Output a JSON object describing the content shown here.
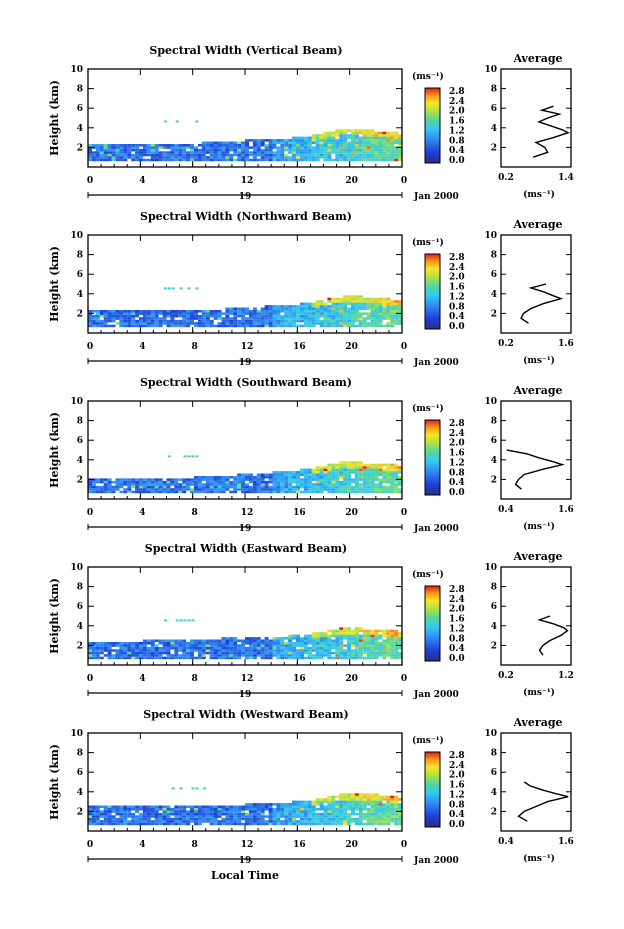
{
  "figure": {
    "xlabel": "Local Time",
    "date_label": "Jan 2000",
    "day_label": "19",
    "ylabel": "Height (km)",
    "colorbar_unit": "(ms⁻¹)",
    "average_title": "Average",
    "average_xlabel": "(ms⁻¹)"
  },
  "chart_data": [
    {
      "type": "heatmap",
      "title": "Spectral Width (Vertical Beam)",
      "xlabel": "Local Time",
      "ylabel": "Height (km)",
      "xlim": [
        0,
        24
      ],
      "ylim": [
        0,
        10
      ],
      "x_ticks": [
        "0",
        "4",
        "8",
        "12",
        "16",
        "20",
        "0"
      ],
      "y_ticks": [
        "2",
        "4",
        "6",
        "8",
        "10"
      ],
      "colorbar": {
        "label": "(ms⁻¹)",
        "range": [
          0.0,
          2.8
        ],
        "ticks": [
          "0.0",
          "0.4",
          "0.8",
          "1.2",
          "1.6",
          "2.0",
          "2.4",
          "2.8"
        ]
      },
      "coverage_top_km": [
        [
          0,
          2.3
        ],
        [
          8,
          2.3
        ],
        [
          12,
          2.6
        ],
        [
          16,
          2.9
        ],
        [
          18,
          3.4
        ],
        [
          19.5,
          3.8
        ],
        [
          22,
          3.6
        ],
        [
          24,
          3.3
        ]
      ],
      "isolated_echo_km": [
        {
          "t": [
            5.8,
            8.3
          ],
          "h": 4.6
        }
      ],
      "average": {
        "title": "Average",
        "xlabel": "(ms⁻¹)",
        "xlim": [
          0.2,
          1.4
        ],
        "x_ticks": [
          "0.2",
          "1.4"
        ],
        "height": [
          1.0,
          1.5,
          2.0,
          2.5,
          3.0,
          3.5,
          3.8,
          4.2,
          4.6,
          5.0,
          5.4,
          5.8,
          6.2
        ],
        "values": [
          0.75,
          1.0,
          0.95,
          0.8,
          1.1,
          1.35,
          1.25,
          1.05,
          0.85,
          1.0,
          1.2,
          0.9,
          1.1
        ]
      }
    },
    {
      "type": "heatmap",
      "title": "Spectral Width (Northward Beam)",
      "xlabel": "Local Time",
      "ylabel": "Height (km)",
      "xlim": [
        0,
        24
      ],
      "ylim": [
        0,
        10
      ],
      "x_ticks": [
        "0",
        "4",
        "8",
        "12",
        "16",
        "20",
        "0"
      ],
      "y_ticks": [
        "2",
        "4",
        "6",
        "8",
        "10"
      ],
      "colorbar": {
        "label": "(ms⁻¹)",
        "range": [
          0.0,
          2.8
        ],
        "ticks": [
          "0.0",
          "0.4",
          "0.8",
          "1.2",
          "1.6",
          "2.0",
          "2.4",
          "2.8"
        ]
      },
      "coverage_top_km": [
        [
          0,
          2.2
        ],
        [
          8,
          2.2
        ],
        [
          12,
          2.5
        ],
        [
          16,
          2.8
        ],
        [
          18,
          3.3
        ],
        [
          19.5,
          3.7
        ],
        [
          22,
          3.5
        ],
        [
          24,
          3.2
        ]
      ],
      "isolated_echo_km": [
        {
          "t": [
            5.8,
            8.5
          ],
          "h": 4.5
        }
      ],
      "average": {
        "title": "Average",
        "xlabel": "(ms⁻¹)",
        "xlim": [
          0.2,
          1.6
        ],
        "x_ticks": [
          "0.2",
          "1.6"
        ],
        "height": [
          1.0,
          1.5,
          2.0,
          2.5,
          3.0,
          3.5,
          3.8,
          4.2,
          4.6,
          5.0
        ],
        "values": [
          0.75,
          0.6,
          0.65,
          0.8,
          1.05,
          1.4,
          1.25,
          1.05,
          0.8,
          1.1
        ]
      }
    },
    {
      "type": "heatmap",
      "title": "Spectral Width (Southward Beam)",
      "xlabel": "Local Time",
      "ylabel": "Height (km)",
      "xlim": [
        0,
        24
      ],
      "ylim": [
        0,
        10
      ],
      "x_ticks": [
        "0",
        "4",
        "8",
        "12",
        "16",
        "20",
        "0"
      ],
      "y_ticks": [
        "2",
        "4",
        "6",
        "8",
        "10"
      ],
      "colorbar": {
        "label": "(ms⁻¹)",
        "range": [
          0.0,
          2.8
        ],
        "ticks": [
          "0.0",
          "0.4",
          "0.8",
          "1.2",
          "1.6",
          "2.0",
          "2.4",
          "2.8"
        ]
      },
      "coverage_top_km": [
        [
          0,
          2.0
        ],
        [
          8,
          2.1
        ],
        [
          12,
          2.4
        ],
        [
          16,
          2.8
        ],
        [
          18,
          3.3
        ],
        [
          19.5,
          3.7
        ],
        [
          22,
          3.5
        ],
        [
          24,
          3.3
        ]
      ],
      "isolated_echo_km": [
        {
          "t": [
            5.8,
            8.5
          ],
          "h": 4.3
        }
      ],
      "average": {
        "title": "Average",
        "xlabel": "(ms⁻¹)",
        "xlim": [
          0.4,
          1.6
        ],
        "x_ticks": [
          "0.4",
          "1.6"
        ],
        "height": [
          1.0,
          1.5,
          2.0,
          2.5,
          3.0,
          3.5,
          3.8,
          4.2,
          4.6,
          5.0
        ],
        "values": [
          0.75,
          0.65,
          0.7,
          0.8,
          1.1,
          1.45,
          1.3,
          1.05,
          0.85,
          0.5
        ]
      }
    },
    {
      "type": "heatmap",
      "title": "Spectral Width (Eastward Beam)",
      "xlabel": "Local Time",
      "ylabel": "Height (km)",
      "xlim": [
        0,
        24
      ],
      "ylim": [
        0,
        10
      ],
      "x_ticks": [
        "0",
        "4",
        "8",
        "12",
        "16",
        "20",
        "0"
      ],
      "y_ticks": [
        "2",
        "4",
        "6",
        "8",
        "10"
      ],
      "colorbar": {
        "label": "(ms⁻¹)",
        "range": [
          0.0,
          2.8
        ],
        "ticks": [
          "0.0",
          "0.4",
          "0.8",
          "1.2",
          "1.6",
          "2.0",
          "2.4",
          "2.8"
        ]
      },
      "coverage_top_km": [
        [
          0,
          2.2
        ],
        [
          8,
          2.5
        ],
        [
          12,
          2.7
        ],
        [
          16,
          2.9
        ],
        [
          18,
          3.3
        ],
        [
          19.5,
          3.7
        ],
        [
          22,
          3.5
        ],
        [
          24,
          3.3
        ]
      ],
      "isolated_echo_km": [
        {
          "t": [
            5.8,
            8.3
          ],
          "h": 4.5
        }
      ],
      "average": {
        "title": "Average",
        "xlabel": "(ms⁻¹)",
        "xlim": [
          0.2,
          1.2
        ],
        "x_ticks": [
          "0.2",
          "1.2"
        ],
        "height": [
          1.0,
          1.5,
          2.0,
          2.5,
          3.0,
          3.5,
          3.8,
          4.2,
          4.6,
          5.0
        ],
        "values": [
          0.8,
          0.75,
          0.8,
          0.9,
          1.05,
          1.15,
          1.1,
          0.95,
          0.75,
          0.9
        ]
      }
    },
    {
      "type": "heatmap",
      "title": "Spectral Width (Westward Beam)",
      "xlabel": "Local Time",
      "ylabel": "Height (km)",
      "xlim": [
        0,
        24
      ],
      "ylim": [
        0,
        10
      ],
      "x_ticks": [
        "0",
        "4",
        "8",
        "12",
        "16",
        "20",
        "0"
      ],
      "y_ticks": [
        "2",
        "4",
        "6",
        "8",
        "10"
      ],
      "colorbar": {
        "label": "(ms⁻¹)",
        "range": [
          0.0,
          2.8
        ],
        "ticks": [
          "0.0",
          "0.4",
          "0.8",
          "1.2",
          "1.6",
          "2.0",
          "2.4",
          "2.8"
        ]
      },
      "coverage_top_km": [
        [
          0,
          2.4
        ],
        [
          8,
          2.5
        ],
        [
          12,
          2.6
        ],
        [
          16,
          2.9
        ],
        [
          18,
          3.3
        ],
        [
          19.5,
          3.7
        ],
        [
          22,
          3.6
        ],
        [
          24,
          3.3
        ]
      ],
      "isolated_echo_km": [
        {
          "t": [
            5.8,
            9.0
          ],
          "h": 4.3
        }
      ],
      "average": {
        "title": "Average",
        "xlabel": "(ms⁻¹)",
        "xlim": [
          0.4,
          1.6
        ],
        "x_ticks": [
          "0.4",
          "1.6"
        ],
        "height": [
          1.0,
          1.5,
          2.0,
          2.5,
          3.0,
          3.5,
          3.8,
          4.2,
          4.6,
          5.0
        ],
        "values": [
          0.85,
          0.7,
          0.8,
          1.0,
          1.2,
          1.55,
          1.35,
          1.1,
          0.9,
          0.8
        ]
      }
    }
  ]
}
